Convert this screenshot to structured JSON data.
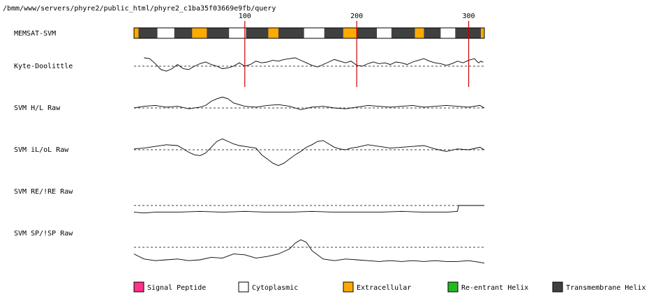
{
  "header": {
    "path": "/bmm/www/servers/phyre2/public_html/phyre2_c1ba35f03669e9fb/query"
  },
  "chart_data": {
    "type": "line",
    "x_range": [
      1,
      314
    ],
    "x_ticks": [
      100,
      200,
      300
    ],
    "marker_color": "#cc0000",
    "memsat": {
      "label": "MEMSAT-SVM",
      "segments": [
        {
          "start": 1,
          "end": 5,
          "type": "extracellular"
        },
        {
          "start": 5,
          "end": 22,
          "type": "tm"
        },
        {
          "start": 22,
          "end": 37,
          "type": "cytoplasmic"
        },
        {
          "start": 37,
          "end": 53,
          "type": "tm"
        },
        {
          "start": 53,
          "end": 66,
          "type": "extracellular"
        },
        {
          "start": 66,
          "end": 86,
          "type": "tm"
        },
        {
          "start": 86,
          "end": 101,
          "type": "cytoplasmic"
        },
        {
          "start": 101,
          "end": 121,
          "type": "tm"
        },
        {
          "start": 121,
          "end": 130,
          "type": "extracellular"
        },
        {
          "start": 130,
          "end": 153,
          "type": "tm"
        },
        {
          "start": 153,
          "end": 171,
          "type": "cytoplasmic"
        },
        {
          "start": 171,
          "end": 188,
          "type": "tm"
        },
        {
          "start": 188,
          "end": 200,
          "type": "extracellular"
        },
        {
          "start": 200,
          "end": 218,
          "type": "tm"
        },
        {
          "start": 218,
          "end": 231,
          "type": "cytoplasmic"
        },
        {
          "start": 231,
          "end": 252,
          "type": "tm"
        },
        {
          "start": 252,
          "end": 260,
          "type": "extracellular"
        },
        {
          "start": 260,
          "end": 275,
          "type": "tm"
        },
        {
          "start": 275,
          "end": 288,
          "type": "cytoplasmic"
        },
        {
          "start": 288,
          "end": 311,
          "type": "tm"
        },
        {
          "start": 311,
          "end": 314,
          "type": "extracellular"
        }
      ]
    },
    "tracks": [
      {
        "label": "Kyte-Doolittle",
        "baseline": 0,
        "amp": 1.5,
        "x": [
          10,
          15,
          20,
          25,
          30,
          35,
          40,
          45,
          50,
          55,
          60,
          65,
          70,
          75,
          80,
          85,
          90,
          95,
          100,
          105,
          110,
          115,
          120,
          125,
          130,
          135,
          140,
          145,
          150,
          155,
          160,
          165,
          170,
          175,
          180,
          185,
          190,
          195,
          200,
          205,
          210,
          215,
          220,
          225,
          230,
          235,
          240,
          245,
          250,
          255,
          260,
          265,
          270,
          275,
          280,
          285,
          290,
          295,
          300,
          305,
          306,
          307,
          308,
          309,
          310,
          311,
          312,
          313
        ],
        "y": [
          1.0,
          0.9,
          0.3,
          -0.4,
          -0.6,
          -0.3,
          0.2,
          -0.3,
          -0.4,
          0.0,
          0.3,
          0.5,
          0.2,
          0.0,
          -0.3,
          -0.2,
          0.0,
          0.4,
          0.0,
          0.2,
          0.6,
          0.4,
          0.5,
          0.7,
          0.6,
          0.8,
          0.9,
          1.0,
          0.7,
          0.4,
          0.1,
          -0.1,
          0.2,
          0.5,
          0.8,
          0.6,
          0.4,
          0.6,
          0.1,
          0.0,
          0.3,
          0.5,
          0.3,
          0.4,
          0.2,
          0.5,
          0.4,
          0.2,
          0.5,
          0.7,
          0.9,
          0.6,
          0.4,
          0.3,
          0.1,
          0.3,
          0.6,
          0.4,
          0.7,
          0.9,
          0.8,
          0.6,
          0.5,
          0.4,
          0.5,
          0.6,
          0.5,
          0.5
        ]
      },
      {
        "label": "SVM H/L Raw",
        "baseline": 0,
        "amp": 1.5,
        "x": [
          1,
          10,
          20,
          30,
          40,
          50,
          60,
          65,
          70,
          75,
          80,
          85,
          90,
          100,
          110,
          120,
          130,
          140,
          150,
          160,
          170,
          180,
          190,
          200,
          210,
          220,
          230,
          240,
          250,
          260,
          270,
          280,
          290,
          300,
          310,
          314
        ],
        "y": [
          0.0,
          0.2,
          0.3,
          0.1,
          0.2,
          -0.1,
          0.1,
          0.3,
          0.8,
          1.1,
          1.3,
          1.1,
          0.6,
          0.2,
          0.1,
          0.3,
          0.4,
          0.2,
          -0.2,
          0.1,
          0.2,
          0.0,
          -0.1,
          0.1,
          0.3,
          0.2,
          0.1,
          0.2,
          0.3,
          0.1,
          0.2,
          0.3,
          0.2,
          0.1,
          0.3,
          0.0
        ]
      },
      {
        "label": "SVM iL/oL Raw",
        "baseline": 0,
        "amp": 1.5,
        "x": [
          1,
          10,
          20,
          30,
          40,
          45,
          50,
          55,
          60,
          65,
          70,
          75,
          80,
          85,
          90,
          95,
          100,
          105,
          110,
          115,
          120,
          125,
          130,
          135,
          140,
          145,
          150,
          155,
          160,
          165,
          170,
          175,
          180,
          185,
          190,
          195,
          200,
          210,
          220,
          230,
          240,
          250,
          260,
          270,
          280,
          290,
          300,
          310,
          314
        ],
        "y": [
          0.1,
          0.2,
          0.4,
          0.6,
          0.5,
          0.1,
          -0.3,
          -0.6,
          -0.7,
          -0.4,
          0.3,
          1.0,
          1.3,
          1.0,
          0.7,
          0.5,
          0.4,
          0.3,
          0.2,
          -0.6,
          -1.1,
          -1.6,
          -1.9,
          -1.6,
          -1.1,
          -0.6,
          -0.2,
          0.3,
          0.6,
          1.0,
          1.1,
          0.7,
          0.3,
          0.1,
          0.0,
          0.2,
          0.3,
          0.6,
          0.4,
          0.2,
          0.3,
          0.4,
          0.5,
          0.1,
          -0.2,
          0.1,
          0.0,
          0.3,
          0.0
        ]
      },
      {
        "label": "SVM RE/!RE Raw",
        "baseline": 0,
        "amp": 1.5,
        "x": [
          1,
          10,
          20,
          40,
          60,
          80,
          100,
          120,
          140,
          160,
          180,
          200,
          220,
          240,
          260,
          280,
          290,
          291,
          300,
          310,
          314
        ],
        "y": [
          -0.8,
          -0.9,
          -0.8,
          -0.8,
          -0.7,
          -0.8,
          -0.7,
          -0.8,
          -0.8,
          -0.7,
          -0.8,
          -0.8,
          -0.8,
          -0.7,
          -0.8,
          -0.8,
          -0.7,
          0.0,
          0.0,
          0.0,
          0.0
        ]
      },
      {
        "label": "SVM SP/!SP Raw",
        "baseline": 0,
        "amp": 1.5,
        "x": [
          1,
          10,
          20,
          30,
          40,
          50,
          60,
          70,
          80,
          90,
          100,
          110,
          120,
          130,
          140,
          145,
          150,
          155,
          160,
          170,
          180,
          190,
          200,
          210,
          220,
          230,
          240,
          250,
          260,
          270,
          280,
          290,
          300,
          310,
          314
        ],
        "y": [
          -0.8,
          -1.4,
          -1.6,
          -1.5,
          -1.4,
          -1.6,
          -1.5,
          -1.2,
          -1.3,
          -0.8,
          -0.9,
          -1.3,
          -1.1,
          -0.8,
          -0.2,
          0.5,
          0.9,
          0.6,
          -0.4,
          -1.4,
          -1.6,
          -1.4,
          -1.5,
          -1.6,
          -1.7,
          -1.6,
          -1.7,
          -1.6,
          -1.7,
          -1.6,
          -1.7,
          -1.7,
          -1.6,
          -1.8,
          -1.9
        ]
      }
    ]
  },
  "legend": [
    {
      "label": "Signal Peptide",
      "color": "#ff3388"
    },
    {
      "label": "Cytoplasmic",
      "color": "#ffffff"
    },
    {
      "label": "Extracellular",
      "color": "#ffaa00"
    },
    {
      "label": "Re-entrant Helix",
      "color": "#22bb22"
    },
    {
      "label": "Transmembrane Helix",
      "color": "#404040"
    }
  ],
  "segment_colors": {
    "extracellular": "#ffaa00",
    "cytoplasmic": "#ffffff",
    "tm": "#404040",
    "signal": "#ff3388",
    "reentrant": "#22bb22"
  }
}
